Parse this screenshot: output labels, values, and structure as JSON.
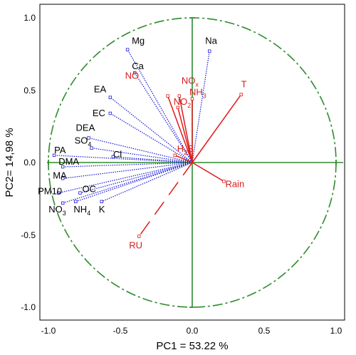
{
  "chart_data": {
    "type": "scatter",
    "subtype": "pca-correlation-circle",
    "xlabel": "PC1 = 53.22 %",
    "ylabel": "PC2= 14,98 %",
    "xlim": [
      -1.0,
      1.0
    ],
    "ylim": [
      -1.0,
      1.0
    ],
    "x_ticks": [
      "-1.0",
      "-0.5",
      "0.0",
      "0.5",
      "1.0"
    ],
    "y_ticks": [
      "1.0",
      "0.5",
      "0.0",
      "-0.5",
      "-1.0"
    ],
    "circle": {
      "radius": 1.0,
      "style": "dash-dot",
      "color": "#2e8b2e"
    },
    "colors": {
      "pollutant": "#1a1ad6",
      "meteo": "#e01a1a",
      "axes": "#2e8b2e"
    },
    "variables": [
      {
        "name": "Mg",
        "sub": "",
        "x": -0.45,
        "y": 0.78,
        "group": "pollutant",
        "style": "dotted"
      },
      {
        "name": "Ca",
        "sub": "",
        "x": -0.4,
        "y": 0.62,
        "group": "pollutant",
        "style": "dotted"
      },
      {
        "name": "Na",
        "sub": "",
        "x": 0.12,
        "y": 0.77,
        "group": "pollutant",
        "style": "dotted"
      },
      {
        "name": "EA",
        "sub": "",
        "x": -0.57,
        "y": 0.45,
        "group": "pollutant",
        "style": "dotted"
      },
      {
        "name": "EC",
        "sub": "",
        "x": -0.57,
        "y": 0.34,
        "group": "pollutant",
        "style": "dotted"
      },
      {
        "name": "DEA",
        "sub": "",
        "x": -0.72,
        "y": 0.17,
        "group": "pollutant",
        "style": "dotted"
      },
      {
        "name": "SO",
        "sub": "4",
        "x": -0.7,
        "y": 0.1,
        "group": "pollutant",
        "style": "dotted"
      },
      {
        "name": "Cl",
        "sub": "",
        "x": -0.55,
        "y": 0.04,
        "group": "pollutant",
        "style": "dotted"
      },
      {
        "name": "PA",
        "sub": "",
        "x": -0.96,
        "y": 0.05,
        "group": "pollutant",
        "style": "dotted"
      },
      {
        "name": "DMA",
        "sub": "",
        "x": -0.9,
        "y": -0.03,
        "group": "pollutant",
        "style": "dotted"
      },
      {
        "name": "MA",
        "sub": "",
        "x": -0.9,
        "y": -0.11,
        "group": "pollutant",
        "style": "dotted"
      },
      {
        "name": "PM10",
        "sub": "",
        "x": -0.93,
        "y": -0.21,
        "group": "pollutant",
        "style": "dotted"
      },
      {
        "name": "OC",
        "sub": "",
        "x": -0.78,
        "y": -0.21,
        "group": "pollutant",
        "style": "dotted"
      },
      {
        "name": "NO",
        "sub": "3",
        "x": -0.9,
        "y": -0.28,
        "group": "pollutant",
        "style": "dotted"
      },
      {
        "name": "NH",
        "sub": "4",
        "x": -0.81,
        "y": -0.27,
        "group": "pollutant",
        "style": "dotted"
      },
      {
        "name": "K",
        "sub": "",
        "x": -0.63,
        "y": -0.27,
        "group": "pollutant",
        "style": "dotted"
      },
      {
        "name": "NO",
        "sub": "",
        "x": -0.17,
        "y": 0.46,
        "group": "meteo",
        "style": "solid"
      },
      {
        "name": "NO",
        "sub": "x",
        "x": -0.09,
        "y": 0.46,
        "group": "meteo",
        "style": "solid"
      },
      {
        "name": "NH",
        "sub": "3",
        "x": 0.0,
        "y": 0.44,
        "group": "meteo",
        "style": "solid"
      },
      {
        "name": "NO",
        "sub": "2",
        "x": -0.1,
        "y": 0.38,
        "group": "meteo",
        "style": "solid"
      },
      {
        "name": "H",
        "sub": "2",
        "sub_mid": true,
        "tail": "S",
        "x": -0.12,
        "y": 0.05,
        "group": "meteo",
        "style": "solid"
      },
      {
        "name": "T",
        "sub": "",
        "x": 0.34,
        "y": 0.47,
        "group": "meteo",
        "style": "solid"
      },
      {
        "name": "Rain",
        "sub": "",
        "x": 0.22,
        "y": -0.13,
        "group": "meteo",
        "style": "solid"
      },
      {
        "name": "RU",
        "sub": "",
        "x": -0.37,
        "y": -0.51,
        "group": "meteo",
        "style": "dashed"
      }
    ]
  }
}
